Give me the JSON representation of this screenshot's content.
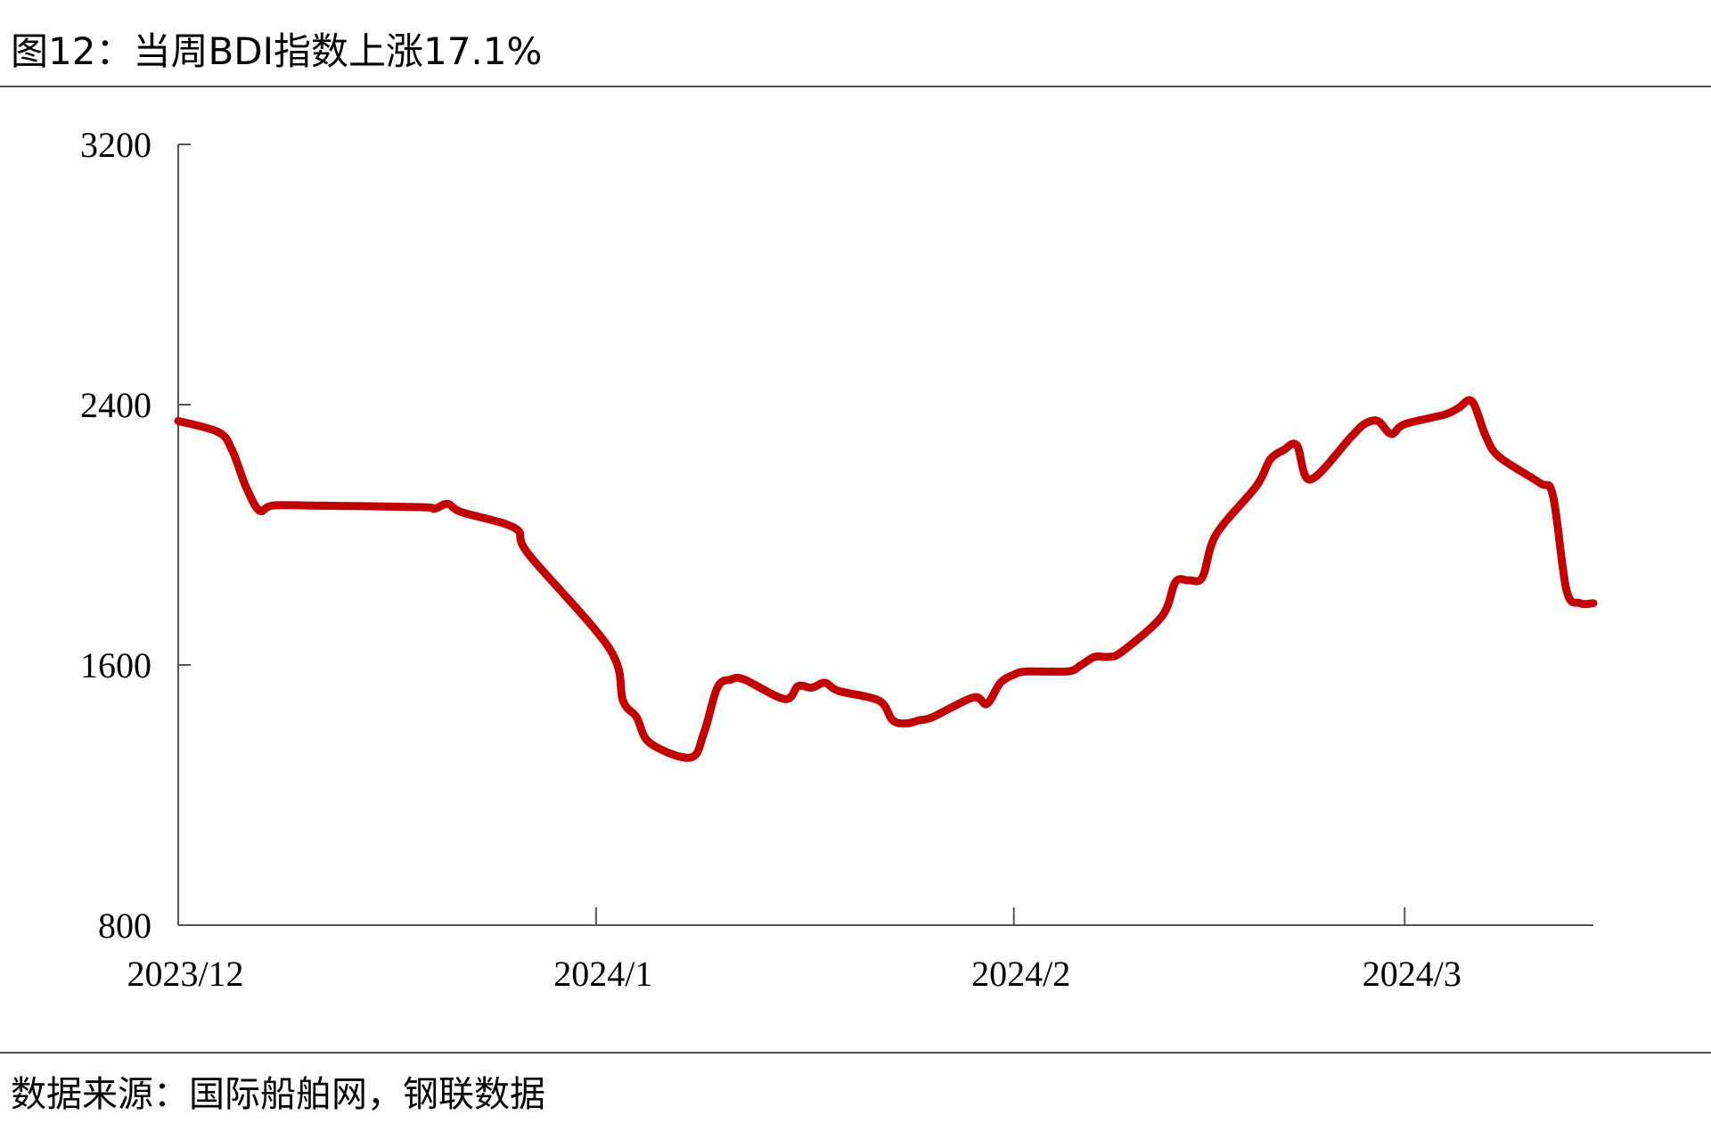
{
  "title": "图12：当周BDI指数上涨17.1%",
  "source": "数据来源：国际船舶网，钢联数据",
  "colors": {
    "line": "#C00000",
    "axis": "#555555"
  },
  "chart_data": {
    "type": "line",
    "title": "图12：当周BDI指数上涨17.1%",
    "xlabel": "",
    "ylabel": "",
    "ylim": [
      800,
      3200
    ],
    "yticks": [
      "800",
      "1600",
      "2400",
      "3200"
    ],
    "xticks": [
      {
        "label": "2023/12",
        "date": "2023-12-01"
      },
      {
        "label": "2024/1",
        "date": "2024-01-01"
      },
      {
        "label": "2024/2",
        "date": "2024-02-01"
      },
      {
        "label": "2024/3",
        "date": "2024-03-01"
      }
    ],
    "xlim": [
      "2023-12-01",
      "2024-03-15"
    ],
    "grid": false,
    "legend": "none",
    "series": [
      {
        "x": [
          "2023-12-01",
          "2023-12-04",
          "2023-12-05",
          "2023-12-06",
          "2023-12-07",
          "2023-12-08",
          "2023-12-11",
          "2023-12-19",
          "2023-12-20",
          "2023-12-21",
          "2023-12-22",
          "2023-12-26",
          "2023-12-27",
          "2024-01-02",
          "2024-01-03",
          "2024-01-04",
          "2024-01-05",
          "2024-01-08",
          "2024-01-09",
          "2024-01-10",
          "2024-01-11",
          "2024-01-12",
          "2024-01-15",
          "2024-01-16",
          "2024-01-17",
          "2024-01-18",
          "2024-01-19",
          "2024-01-22",
          "2024-01-23",
          "2024-01-24",
          "2024-01-25",
          "2024-01-26",
          "2024-01-29",
          "2024-01-30",
          "2024-01-31",
          "2024-02-01",
          "2024-02-02",
          "2024-02-05",
          "2024-02-06",
          "2024-02-07",
          "2024-02-08",
          "2024-02-09",
          "2024-02-12",
          "2024-02-13",
          "2024-02-14",
          "2024-02-15",
          "2024-02-16",
          "2024-02-19",
          "2024-02-20",
          "2024-02-21",
          "2024-02-22",
          "2024-02-23",
          "2024-02-26",
          "2024-02-27",
          "2024-02-28",
          "2024-02-29",
          "2024-03-01",
          "2024-03-04",
          "2024-03-05",
          "2024-03-06",
          "2024-03-07",
          "2024-03-08",
          "2024-03-11",
          "2024-03-12",
          "2024-03-13",
          "2024-03-14",
          "2024-03-15"
        ],
        "y": [
          2350,
          2315,
          2260,
          2150,
          2075,
          2090,
          2090,
          2085,
          2080,
          2095,
          2070,
          2020,
          1940,
          1650,
          1490,
          1440,
          1360,
          1315,
          1390,
          1530,
          1555,
          1555,
          1495,
          1535,
          1530,
          1545,
          1520,
          1490,
          1430,
          1420,
          1430,
          1440,
          1500,
          1480,
          1545,
          1570,
          1580,
          1580,
          1600,
          1625,
          1625,
          1640,
          1750,
          1855,
          1860,
          1870,
          2000,
          2150,
          2230,
          2260,
          2275,
          2170,
          2300,
          2340,
          2350,
          2310,
          2340,
          2370,
          2390,
          2410,
          2305,
          2240,
          2160,
          2120,
          1830,
          1790,
          1790
        ]
      }
    ]
  }
}
